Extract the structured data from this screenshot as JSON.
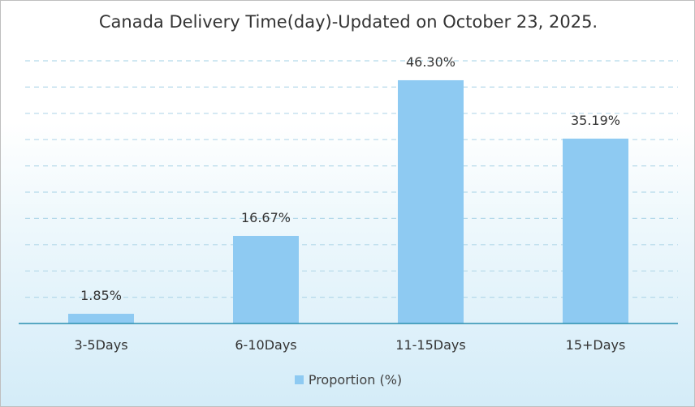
{
  "chart_data": {
    "type": "bar",
    "title": "Canada Delivery Time(day)-Updated on October 23, 2025.",
    "categories": [
      "3-5Days",
      "6-10Days",
      "11-15Days",
      "15+Days"
    ],
    "series": [
      {
        "name": "Proportion (%)",
        "values": [
          1.85,
          16.67,
          46.3,
          35.19
        ]
      }
    ],
    "data_labels": [
      "1.85%",
      "16.67%",
      "46.30%",
      "35.19%"
    ],
    "xlabel": "",
    "ylabel": "",
    "ylim": [
      0,
      50
    ],
    "gridlines": true,
    "gridline_style": "dashed",
    "y_axis_visible": false,
    "legend_position": "bottom",
    "colors": {
      "bar": "#8ecaf2",
      "grid": "#b5d9ea",
      "axis": "#2a8fb0"
    }
  }
}
